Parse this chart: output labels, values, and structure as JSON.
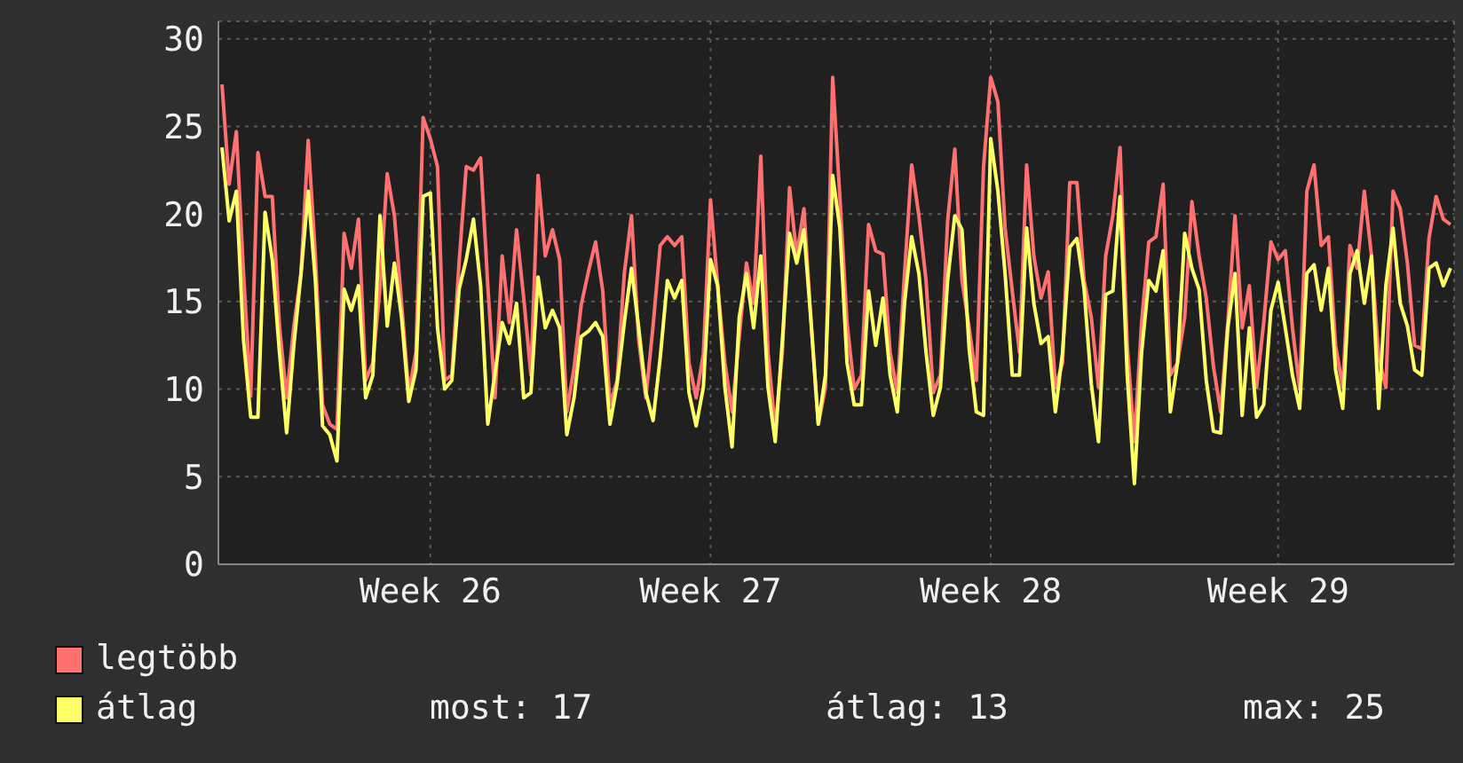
{
  "chart_data": {
    "type": "line",
    "ylim": [
      0,
      31
    ],
    "categories": [
      null,
      null,
      null,
      null,
      null,
      null,
      null,
      null,
      null,
      null,
      null,
      null,
      null,
      null,
      null,
      null,
      null,
      null,
      null,
      null,
      null,
      null,
      null,
      null,
      null,
      null,
      null,
      null,
      null,
      "Week 26",
      null,
      null,
      null,
      null,
      null,
      null,
      null,
      null,
      null,
      null,
      null,
      null,
      null,
      null,
      null,
      null,
      null,
      null,
      null,
      null,
      null,
      null,
      null,
      null,
      null,
      null,
      null,
      null,
      null,
      null,
      null,
      null,
      null,
      null,
      null,
      null,
      null,
      null,
      "Week 27",
      null,
      null,
      null,
      null,
      null,
      null,
      null,
      null,
      null,
      null,
      null,
      null,
      null,
      null,
      null,
      null,
      null,
      null,
      null,
      null,
      null,
      null,
      null,
      null,
      null,
      null,
      null,
      null,
      null,
      null,
      null,
      null,
      null,
      null,
      null,
      null,
      null,
      null,
      "Week 28",
      null,
      null,
      null,
      null,
      null,
      null,
      null,
      null,
      null,
      null,
      null,
      null,
      null,
      null,
      null,
      null,
      null,
      null,
      null,
      null,
      null,
      null,
      null,
      null,
      null,
      null,
      null,
      null,
      null,
      null,
      null,
      null,
      null,
      null,
      null,
      null,
      null,
      null,
      null,
      "Week 29",
      null,
      null,
      null,
      null,
      null,
      null,
      null,
      null,
      null,
      null,
      null,
      null,
      null,
      null,
      null,
      null,
      null,
      null,
      null,
      null,
      null,
      null,
      null,
      null
    ],
    "yticks": [
      0,
      5,
      10,
      15,
      20,
      25,
      30
    ],
    "grid": true,
    "legend": "bottom",
    "annotations": [
      "most: 17",
      "átlag: 13",
      "max: 25"
    ],
    "series": [
      {
        "name": "legtöbb",
        "color": "#ff7070",
        "values": [
          27.4,
          21.7,
          24.7,
          16.6,
          9.6,
          23.5,
          21,
          21,
          13.6,
          9.5,
          13.6,
          16.6,
          24.2,
          17.6,
          9.1,
          8,
          7.7,
          18.9,
          16.9,
          19.7,
          10.5,
          11.5,
          15.8,
          22.3,
          19.9,
          14.9,
          9.8,
          12.1,
          25.5,
          24.3,
          22.7,
          10.5,
          10.8,
          17.2,
          22.7,
          22.5,
          23.2,
          15.9,
          9.5,
          17.6,
          13.8,
          19.1,
          15.2,
          10.8,
          22.2,
          17.6,
          19.1,
          17.4,
          8.7,
          11.2,
          14.8,
          16.7,
          18.4,
          15.6,
          9.1,
          10.5,
          16.6,
          19.9,
          12.8,
          9.5,
          13.6,
          18.2,
          18.7,
          18.2,
          18.7,
          11.5,
          9.5,
          12,
          20.8,
          15.9,
          11.5,
          8.7,
          13,
          17.2,
          14.9,
          23.3,
          12.1,
          7.7,
          12.1,
          21.5,
          17.6,
          20.3,
          13.8,
          8,
          10.1,
          27.8,
          21,
          13.8,
          10,
          10.8,
          19.4,
          17.9,
          17.7,
          12.1,
          9.8,
          16.6,
          22.8,
          19.9,
          16.2,
          9.8,
          10.8,
          19.6,
          23.7,
          16.2,
          13.5,
          10.5,
          22.7,
          27.8,
          26.4,
          19.2,
          15.6,
          12.1,
          22.8,
          17.6,
          15.2,
          16.7,
          10.1,
          11.5,
          21.8,
          21.8,
          16.2,
          14.1,
          10.1,
          17.6,
          19.9,
          23.8,
          12.5,
          7,
          13.8,
          18.4,
          18.7,
          21.7,
          10.8,
          11.5,
          14.1,
          20.7,
          17.6,
          15.2,
          11.3,
          8.7,
          13.8,
          19.9,
          13.5,
          15.9,
          10.1,
          13.8,
          18.4,
          17.4,
          17.9,
          13.5,
          10,
          21.3,
          22.8,
          18.2,
          18.7,
          12.5,
          10.1,
          18.2,
          16.9,
          21.3,
          17.6,
          11.8,
          10.1,
          21.3,
          20.3,
          17.2,
          12.5,
          12.3,
          18.6,
          21,
          19.7,
          19.4
        ]
      },
      {
        "name": "átlag",
        "color": "#ffff66",
        "values": [
          23.8,
          19.6,
          21.3,
          12.8,
          8.4,
          8.4,
          20.1,
          17.4,
          12.1,
          7.5,
          12.5,
          16.6,
          21.3,
          16.2,
          7.9,
          7.4,
          5.9,
          15.7,
          14.5,
          15.9,
          9.5,
          10.8,
          19.9,
          13.6,
          17.2,
          14.1,
          9.3,
          11.1,
          21,
          21.2,
          13.5,
          10,
          10.5,
          15.7,
          17.4,
          19.7,
          15.9,
          8,
          10.9,
          13.8,
          12.6,
          14.9,
          9.5,
          9.8,
          16.4,
          13.5,
          14.5,
          13.5,
          7.4,
          9.5,
          13,
          13.3,
          13.8,
          13,
          8,
          10.3,
          13.8,
          16.9,
          13.5,
          9.8,
          8.2,
          11.8,
          16.2,
          15.2,
          16.2,
          9.8,
          7.9,
          10.1,
          17.4,
          15.9,
          10.1,
          6.7,
          14.1,
          16.6,
          13.5,
          17.6,
          10.1,
          7,
          12.8,
          18.9,
          17.2,
          19.1,
          13.8,
          8,
          10.8,
          22.2,
          19.2,
          11.5,
          9.1,
          9.1,
          15.6,
          12.5,
          15.2,
          10.8,
          8.7,
          14.9,
          18.7,
          16.6,
          12.1,
          8.5,
          10.1,
          16.2,
          19.9,
          19.1,
          12.3,
          8.7,
          8.5,
          24.3,
          21.3,
          16.6,
          10.8,
          10.8,
          19.2,
          14.9,
          12.6,
          13,
          8.7,
          12.1,
          18.1,
          18.6,
          15.7,
          10.3,
          7,
          15.4,
          15.6,
          21,
          10.8,
          4.6,
          12.1,
          16.2,
          15.6,
          17.9,
          8.7,
          11.5,
          18.9,
          16.9,
          15.7,
          10.5,
          7.6,
          7.5,
          13.5,
          16.6,
          8.5,
          13.5,
          8.4,
          9.1,
          14.5,
          16.1,
          13.5,
          10.8,
          8.9,
          16.6,
          17.1,
          14.5,
          16.9,
          11.1,
          8.9,
          16.6,
          17.9,
          14.9,
          17.6,
          8.9,
          15.9,
          19.2,
          14.9,
          13.6,
          11.1,
          10.8,
          16.9,
          17.2,
          15.9,
          16.9
        ]
      }
    ]
  }
}
